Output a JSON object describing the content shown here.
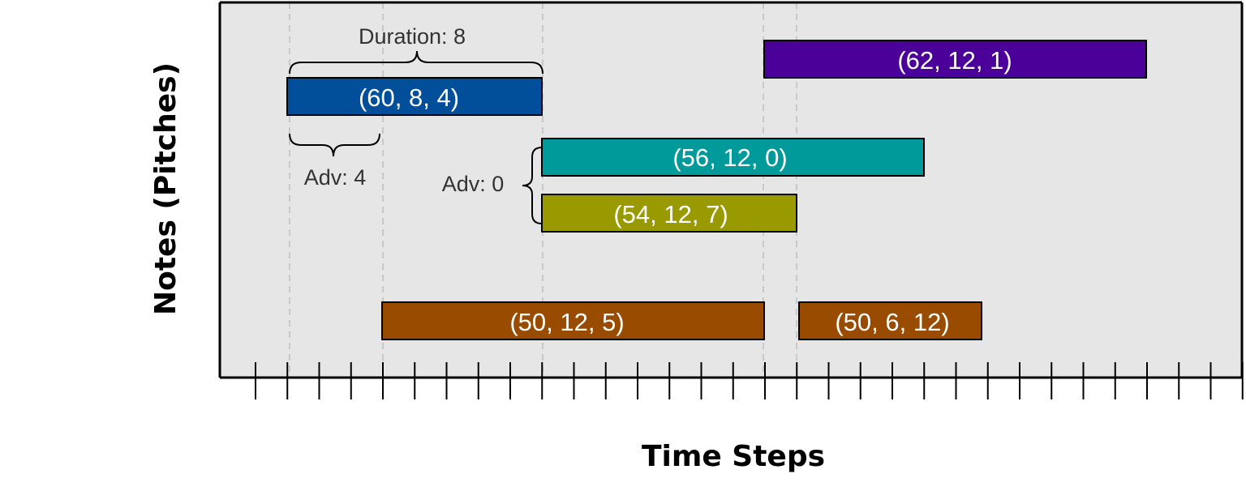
{
  "chart_data": {
    "type": "piano-roll",
    "xlabel": "Time Steps",
    "ylabel": "Notes (Pitches)",
    "x_tick_count": 32,
    "grid": "vertical dashed guides at note onsets/ends",
    "notes": [
      {
        "pitch": 62,
        "duration": 12,
        "advance": 1,
        "label": "(62, 12, 1)",
        "color": "#4b0099"
      },
      {
        "pitch": 60,
        "duration": 8,
        "advance": 4,
        "label": "(60, 8, 4)",
        "color": "#014f9b"
      },
      {
        "pitch": 56,
        "duration": 12,
        "advance": 0,
        "label": "(56, 12, 0)",
        "color": "#009a9a"
      },
      {
        "pitch": 54,
        "duration": 12,
        "advance": 7,
        "label": "(54, 12, 7)",
        "color": "#999a00"
      },
      {
        "pitch": 50,
        "duration": 12,
        "advance": 5,
        "label": "(50, 12, 5)",
        "color": "#994c00"
      },
      {
        "pitch": 50,
        "duration": 6,
        "advance": 12,
        "label": "(50, 6, 12)",
        "color": "#994c00"
      }
    ],
    "annotations": {
      "duration": "Duration: 8",
      "adv_4": "Adv: 4",
      "adv_0": "Adv: 0"
    }
  },
  "colors": {
    "plot_background": "#e6e6e6",
    "frame": "#000000",
    "guide": "#c8c8c8"
  }
}
